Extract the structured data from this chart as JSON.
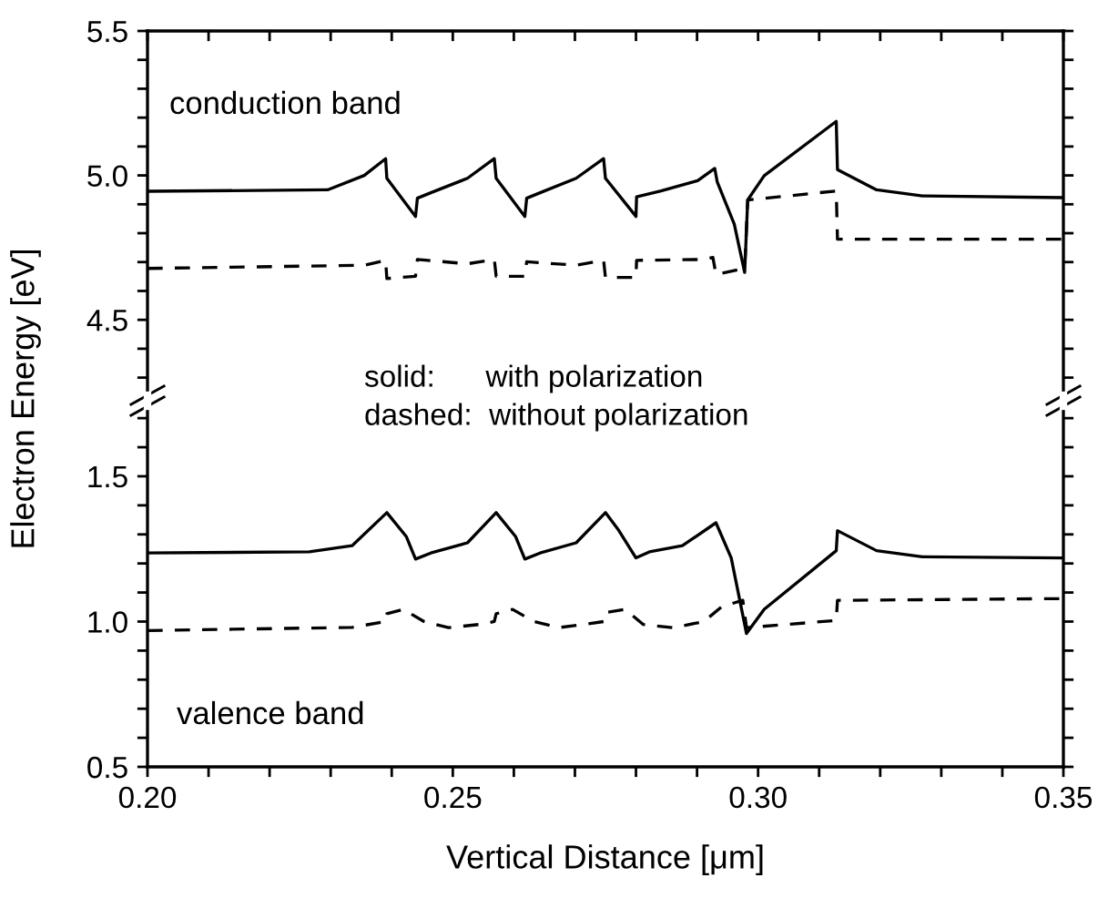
{
  "chart_data": [
    {
      "type": "line",
      "ylabel": "Electron Energy [eV]",
      "xlim": [
        0.2,
        0.35
      ],
      "xticks": [
        {
          "value": 0.2,
          "label": null
        },
        {
          "value": 0.21,
          "label": null
        },
        {
          "value": 0.22,
          "label": null
        },
        {
          "value": 0.23,
          "label": null
        },
        {
          "value": 0.24,
          "label": null
        },
        {
          "value": 0.25,
          "label": null
        },
        {
          "value": 0.26,
          "label": null
        },
        {
          "value": 0.27,
          "label": null
        },
        {
          "value": 0.28,
          "label": null
        },
        {
          "value": 0.29,
          "label": null
        },
        {
          "value": 0.3,
          "label": null
        },
        {
          "value": 0.31,
          "label": null
        },
        {
          "value": 0.32,
          "label": null
        },
        {
          "value": 0.33,
          "label": null
        },
        {
          "value": 0.34,
          "label": null
        },
        {
          "value": 0.35,
          "label": null
        }
      ],
      "ylim": [
        4.22,
        5.5
      ],
      "yticks": [
        {
          "value": 4.3,
          "label": null
        },
        {
          "value": 4.4,
          "label": null
        },
        4.5,
        {
          "value": 4.6,
          "label": null
        },
        {
          "value": 4.7,
          "label": null
        },
        {
          "value": 4.8,
          "label": null
        },
        {
          "value": 4.9,
          "label": null
        },
        {
          "value": 5.0,
          "label": "5.0"
        },
        {
          "value": 5.1,
          "label": null
        },
        {
          "value": 5.2,
          "label": null
        },
        {
          "value": 5.3,
          "label": null
        },
        {
          "value": 5.4,
          "label": null
        },
        5.5
      ],
      "tick_labels": "y",
      "grid": false,
      "legend": false,
      "marker": "none",
      "annotations": [
        "conduction band",
        "solid:      with polarization",
        "dashed:  without polarization"
      ],
      "series": [
        {
          "color": "#000000",
          "line_style": "solid",
          "x": [
            0.2,
            0.2295,
            0.2355,
            0.239,
            0.2392,
            0.2439,
            0.2442,
            0.2464,
            0.2524,
            0.2568,
            0.2571,
            0.2618,
            0.2621,
            0.2643,
            0.2702,
            0.2747,
            0.275,
            0.28,
            0.2801,
            0.2841,
            0.2901,
            0.2929,
            0.2933,
            0.2961,
            0.2978,
            0.2983,
            0.301,
            0.3128,
            0.313,
            0.3194,
            0.3269,
            0.35
          ],
          "values": [
            4.945,
            4.95,
            5.0,
            5.058,
            4.99,
            4.858,
            4.921,
            4.94,
            4.99,
            5.058,
            4.99,
            4.858,
            4.921,
            4.94,
            4.99,
            5.058,
            4.99,
            4.858,
            4.926,
            4.946,
            4.982,
            5.024,
            4.978,
            4.831,
            4.664,
            4.915,
            4.999,
            5.187,
            5.02,
            4.95,
            4.929,
            4.923
          ]
        },
        {
          "color": "#000000",
          "line_style": "dashed",
          "x": [
            0.2,
            0.2355,
            0.239,
            0.2392,
            0.2439,
            0.2442,
            0.2524,
            0.2568,
            0.2571,
            0.2618,
            0.2621,
            0.2702,
            0.2747,
            0.275,
            0.28,
            0.2801,
            0.2911,
            0.2926,
            0.2931,
            0.2978,
            0.2983,
            0.3128,
            0.313,
            0.35
          ],
          "values": [
            4.678,
            4.689,
            4.706,
            4.643,
            4.651,
            4.709,
            4.694,
            4.709,
            4.651,
            4.651,
            4.701,
            4.689,
            4.706,
            4.647,
            4.647,
            4.706,
            4.709,
            4.716,
            4.657,
            4.678,
            4.915,
            4.946,
            4.779,
            4.779
          ]
        }
      ]
    },
    {
      "type": "line",
      "xlabel": "Vertical Distance [μm]",
      "xlim": [
        0.2,
        0.35
      ],
      "xticks": [
        {
          "value": 0.2,
          "label": "0.20"
        },
        {
          "value": 0.21,
          "label": null
        },
        {
          "value": 0.22,
          "label": null
        },
        {
          "value": 0.23,
          "label": null
        },
        {
          "value": 0.24,
          "label": null
        },
        {
          "value": 0.25,
          "label": "0.25"
        },
        {
          "value": 0.26,
          "label": null
        },
        {
          "value": 0.27,
          "label": null
        },
        {
          "value": 0.28,
          "label": null
        },
        {
          "value": 0.29,
          "label": null
        },
        {
          "value": 0.3,
          "label": "0.30"
        },
        {
          "value": 0.31,
          "label": null
        },
        {
          "value": 0.32,
          "label": null
        },
        {
          "value": 0.33,
          "label": null
        },
        {
          "value": 0.34,
          "label": null
        },
        0.35
      ],
      "ylim": [
        0.5,
        1.76
      ],
      "yticks": [
        0.5,
        {
          "value": 0.6,
          "label": null
        },
        {
          "value": 0.7,
          "label": null
        },
        {
          "value": 0.8,
          "label": null
        },
        {
          "value": 0.9,
          "label": null
        },
        {
          "value": 1.0,
          "label": "1.0"
        },
        {
          "value": 1.1,
          "label": null
        },
        {
          "value": 1.2,
          "label": null
        },
        {
          "value": 1.3,
          "label": null
        },
        {
          "value": 1.4,
          "label": null
        },
        1.5,
        {
          "value": 1.6,
          "label": null
        },
        {
          "value": 1.7,
          "label": null
        }
      ],
      "grid": false,
      "legend": false,
      "marker": "none",
      "annotations": [
        "valence band"
      ],
      "series": [
        {
          "color": "#000000",
          "line_style": "solid",
          "x": [
            0.2,
            0.2265,
            0.2335,
            0.2392,
            0.2424,
            0.2439,
            0.2464,
            0.2524,
            0.2571,
            0.2603,
            0.2618,
            0.2643,
            0.2702,
            0.275,
            0.2772,
            0.28,
            0.2822,
            0.2876,
            0.2931,
            0.2956,
            0.2981,
            0.301,
            0.3128,
            0.313,
            0.3194,
            0.3269,
            0.35
          ],
          "values": [
            1.236,
            1.24,
            1.261,
            1.375,
            1.292,
            1.215,
            1.236,
            1.271,
            1.375,
            1.292,
            1.215,
            1.236,
            1.271,
            1.375,
            1.313,
            1.219,
            1.24,
            1.261,
            1.34,
            1.219,
            0.959,
            1.042,
            1.244,
            1.313,
            1.244,
            1.223,
            1.219
          ]
        },
        {
          "color": "#000000",
          "line_style": "dashed",
          "x": [
            0.2,
            0.2335,
            0.239,
            0.2392,
            0.2419,
            0.2453,
            0.2493,
            0.2543,
            0.2568,
            0.2571,
            0.2598,
            0.2633,
            0.2673,
            0.2713,
            0.2747,
            0.275,
            0.2782,
            0.2812,
            0.2861,
            0.2911,
            0.2941,
            0.2975,
            0.2981,
            0.3128,
            0.313,
            0.35
          ],
          "values": [
            0.969,
            0.98,
            1.0,
            1.027,
            1.042,
            1.0,
            0.979,
            0.99,
            1.0,
            1.027,
            1.042,
            1.0,
            0.979,
            0.99,
            1.0,
            1.031,
            1.042,
            0.99,
            0.979,
            1.0,
            1.052,
            1.073,
            0.979,
            1.004,
            1.073,
            1.079
          ]
        }
      ]
    }
  ]
}
